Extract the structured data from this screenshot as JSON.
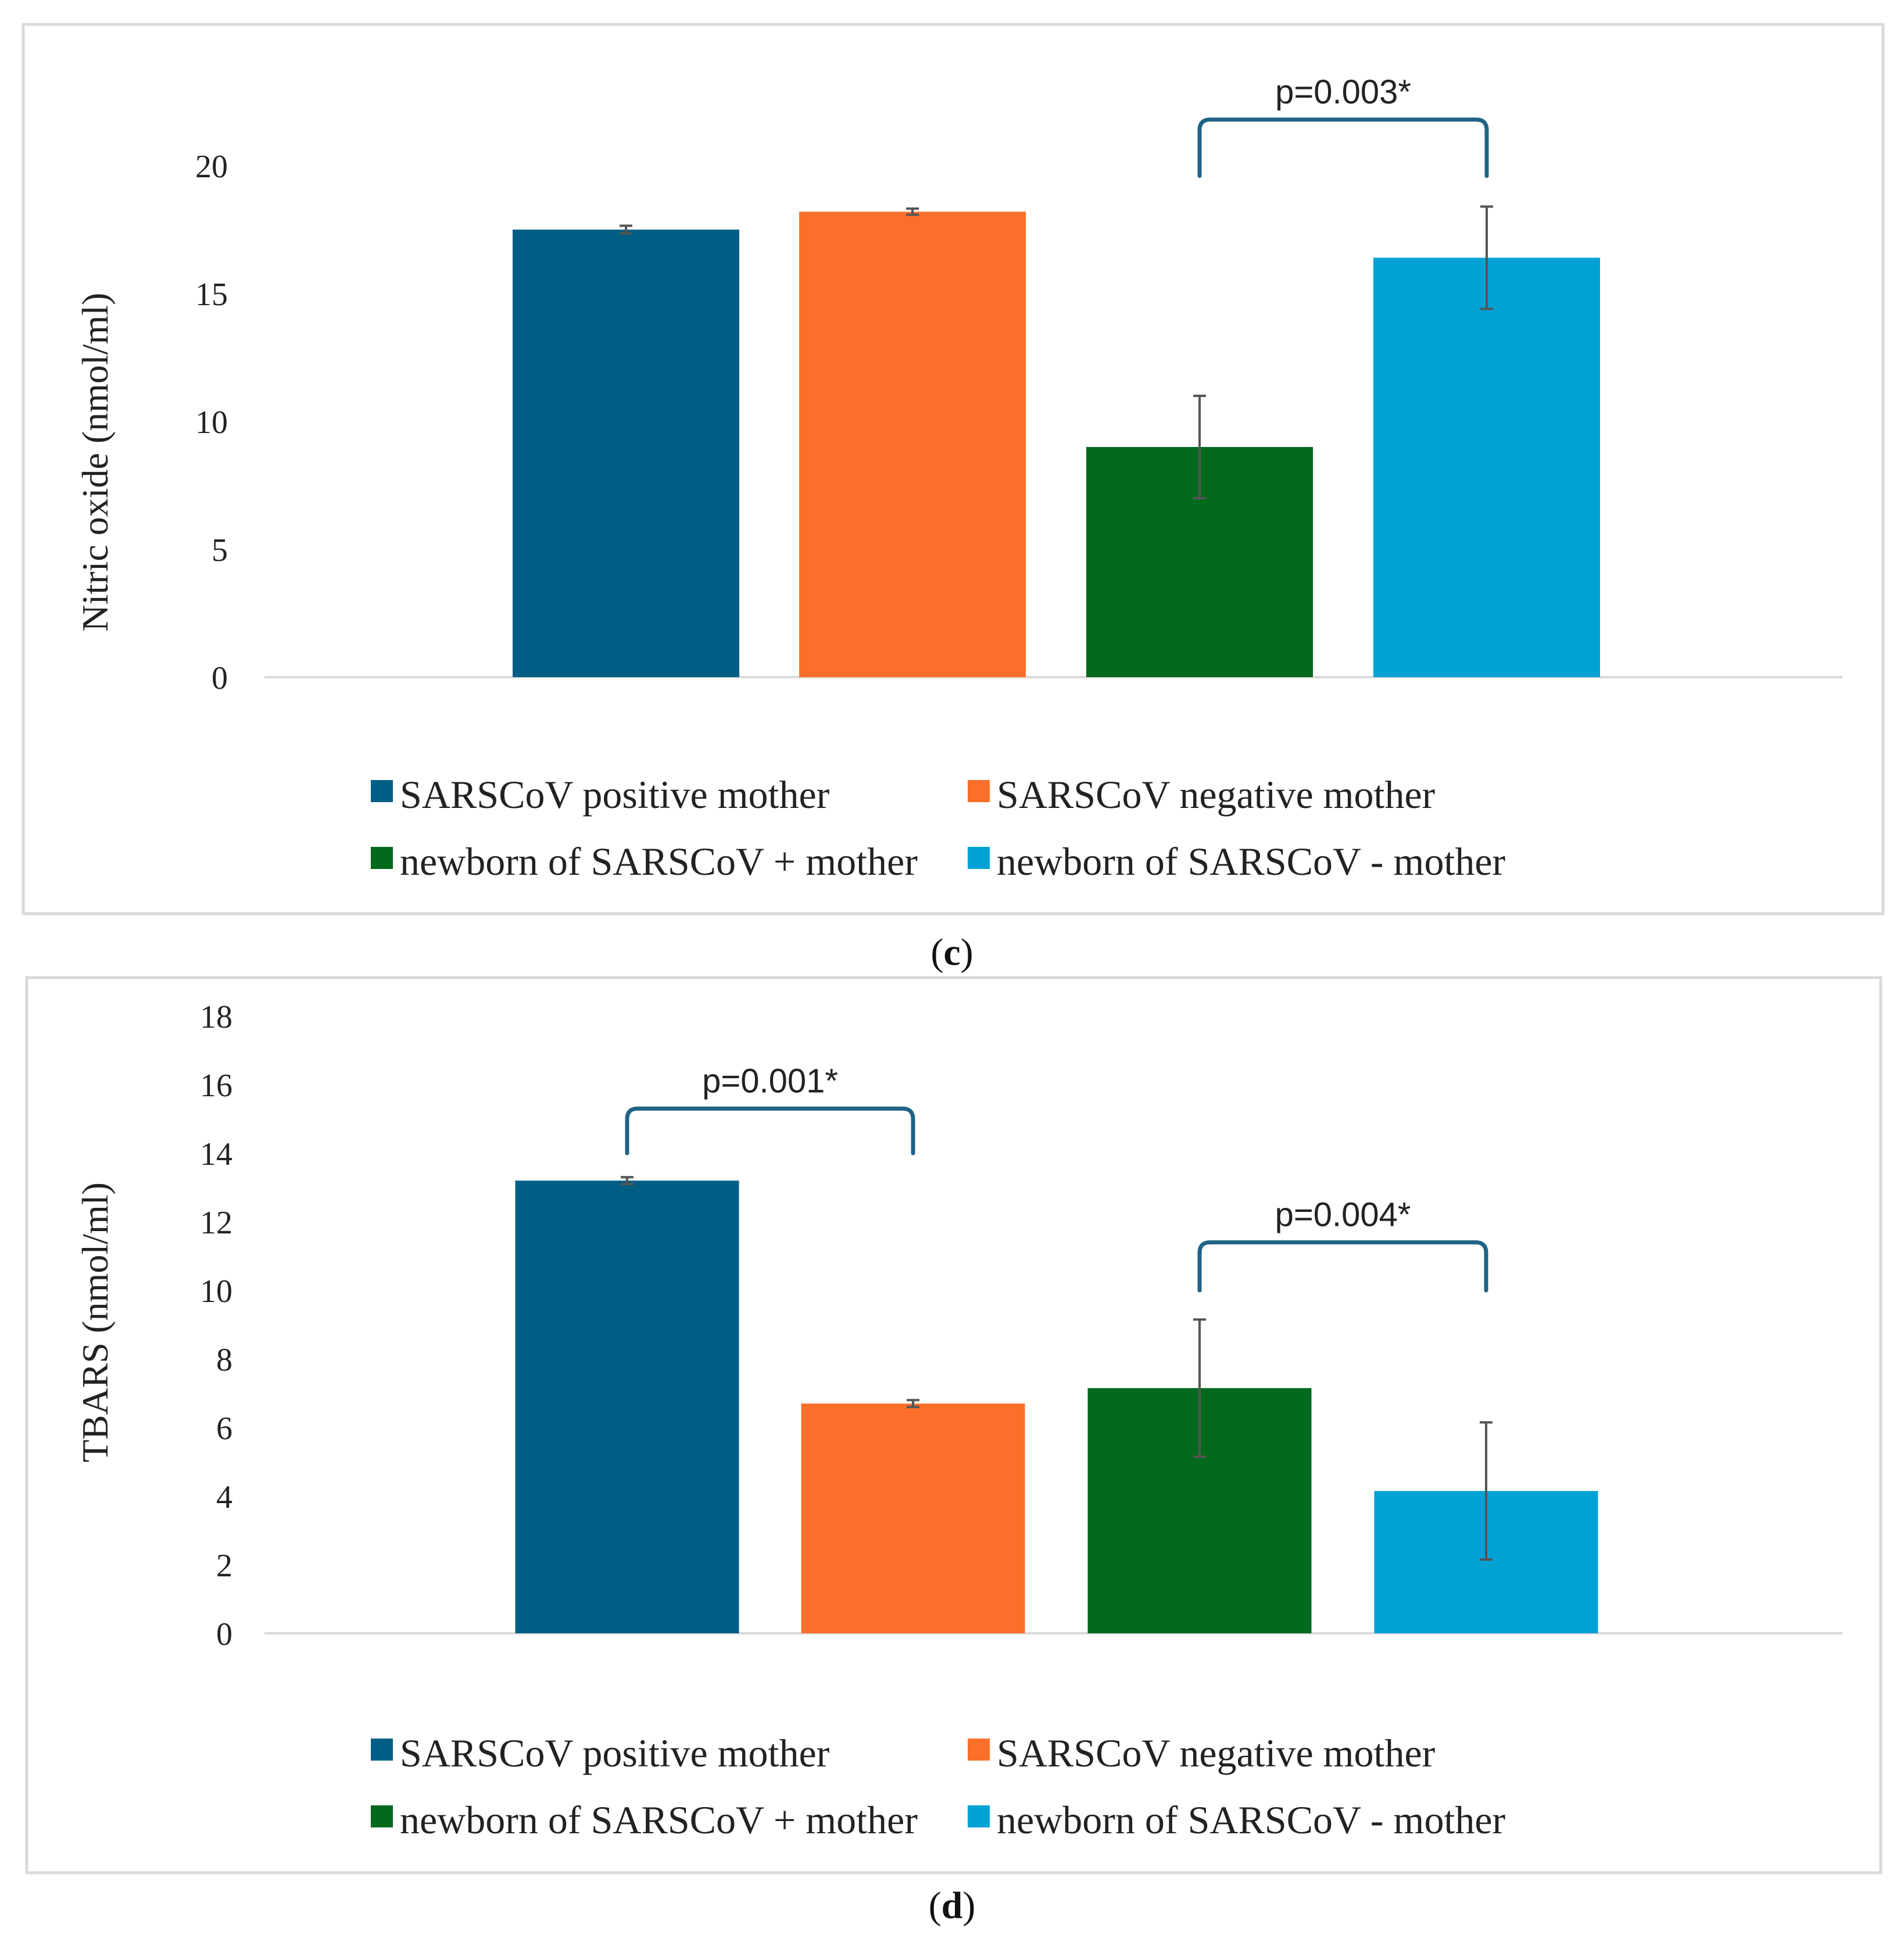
{
  "chart_data": [
    {
      "type": "bar",
      "panel_label": "c",
      "ylabel": "Nitric oxide (nmol/ml)",
      "ylim": [
        0,
        20
      ],
      "yticks": [
        0,
        5,
        10,
        15,
        20
      ],
      "grid": false,
      "legend_position": "bottom",
      "series": [
        {
          "name": "SARSCoV positive mother",
          "value": 17.5,
          "error": 0.15,
          "color": "#005E84"
        },
        {
          "name": "SARSCoV negative mother",
          "value": 18.2,
          "error": 0.12,
          "color": "#FB6F2A"
        },
        {
          "name": "newborn of SARSCoV + mother",
          "value": 9.0,
          "error": 2.0,
          "color": "#02691D"
        },
        {
          "name": "newborn of SARSCoV - mother",
          "value": 16.4,
          "error": 2.0,
          "color": "#00A2D6"
        }
      ],
      "annotations": [
        {
          "label": "p=0.003*",
          "from_series": 2,
          "to_series": 3,
          "bracket_level": 21.8,
          "tip_level": 19.6
        }
      ]
    },
    {
      "type": "bar",
      "panel_label": "d",
      "ylabel": "TBARS (nmol/ml)",
      "ylim": [
        0,
        18
      ],
      "yticks": [
        0,
        2,
        4,
        6,
        8,
        10,
        12,
        14,
        16,
        18
      ],
      "grid": false,
      "legend_position": "bottom",
      "series": [
        {
          "name": "SARSCoV positive mother",
          "value": 13.2,
          "error": 0.1,
          "color": "#005E84"
        },
        {
          "name": "SARSCoV negative mother",
          "value": 6.7,
          "error": 0.1,
          "color": "#FB6F2A"
        },
        {
          "name": "newborn of SARSCoV + mother",
          "value": 7.15,
          "error": 2.0,
          "color": "#02691D"
        },
        {
          "name": "newborn of SARSCoV - mother",
          "value": 4.15,
          "error": 2.0,
          "color": "#00A2D6"
        }
      ],
      "annotations": [
        {
          "label": "p=0.001*",
          "from_series": 0,
          "to_series": 1,
          "bracket_level": 15.3,
          "tip_level": 14.0
        },
        {
          "label": "p=0.004*",
          "from_series": 2,
          "to_series": 3,
          "bracket_level": 11.4,
          "tip_level": 10.0
        }
      ]
    }
  ]
}
